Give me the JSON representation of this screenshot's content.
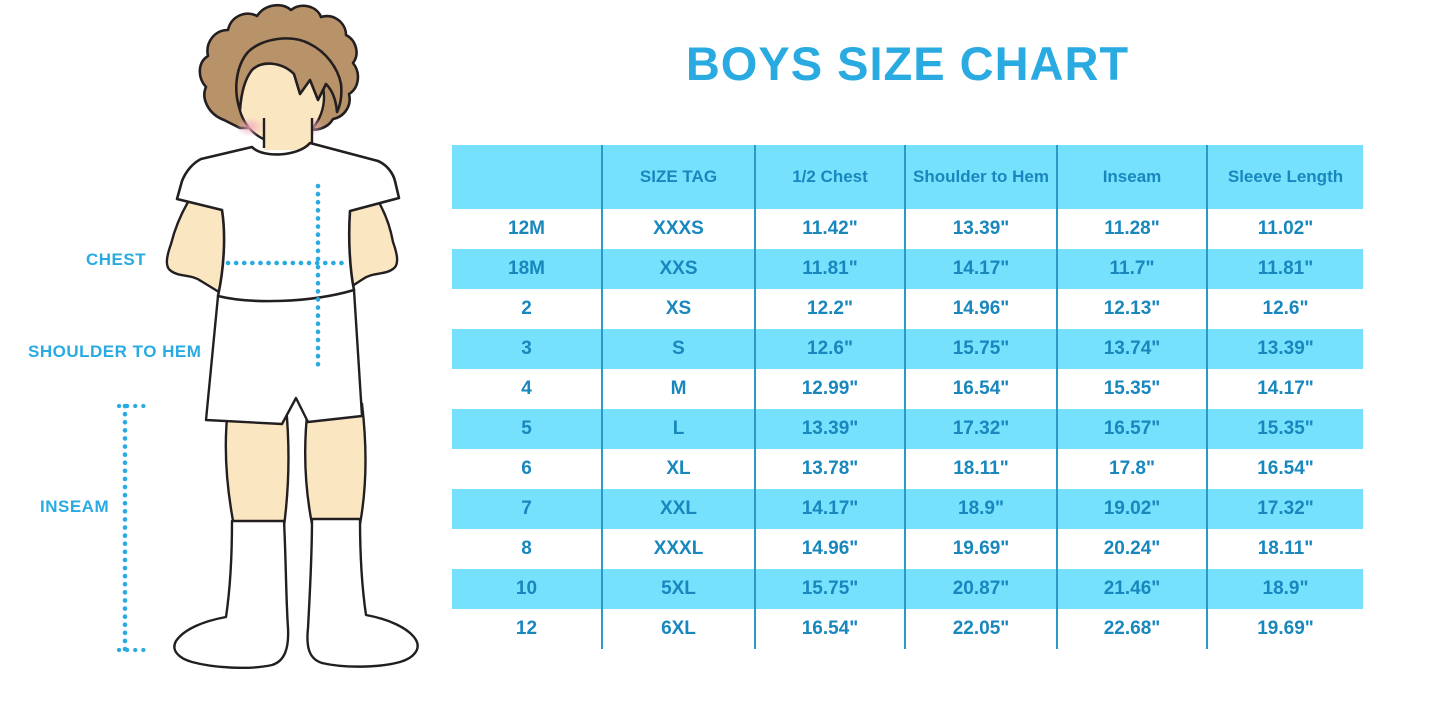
{
  "title": "BOYS SIZE CHART",
  "figure": {
    "labels": {
      "chest": "CHEST",
      "shoulder_to_hem": "SHOULDER TO HEM",
      "inseam": "INSEAM"
    },
    "icons": [
      "boy-illustration",
      "chest-dotted-line",
      "shoulder-to-hem-dotted-line",
      "inseam-dotted-line"
    ]
  },
  "colors": {
    "accent_blue": "#29ABE2",
    "table_fill_blue": "#76E1FC",
    "table_text_blue": "#1787BE",
    "table_border_blue": "#2B9AC6",
    "skin": "#FBE6C2",
    "hair": "#B8936A",
    "outline": "#231F20",
    "background": "#FFFFFF"
  },
  "chart_data": {
    "type": "table",
    "title": "BOYS SIZE CHART",
    "columns": [
      "",
      "SIZE TAG",
      "1/2 Chest",
      "Shoulder to Hem",
      "Inseam",
      "Sleeve Length"
    ],
    "rows": [
      [
        "12M",
        "XXXS",
        "11.42\"",
        "13.39\"",
        "11.28\"",
        "11.02\""
      ],
      [
        "18M",
        "XXS",
        "11.81\"",
        "14.17\"",
        "11.7\"",
        "11.81\""
      ],
      [
        "2",
        "XS",
        "12.2\"",
        "14.96\"",
        "12.13\"",
        "12.6\""
      ],
      [
        "3",
        "S",
        "12.6\"",
        "15.75\"",
        "13.74\"",
        "13.39\""
      ],
      [
        "4",
        "M",
        "12.99\"",
        "16.54\"",
        "15.35\"",
        "14.17\""
      ],
      [
        "5",
        "L",
        "13.39\"",
        "17.32\"",
        "16.57\"",
        "15.35\""
      ],
      [
        "6",
        "XL",
        "13.78\"",
        "18.11\"",
        "17.8\"",
        "16.54\""
      ],
      [
        "7",
        "XXL",
        "14.17\"",
        "18.9\"",
        "19.02\"",
        "17.32\""
      ],
      [
        "8",
        "XXXL",
        "14.96\"",
        "19.69\"",
        "20.24\"",
        "18.11\""
      ],
      [
        "10",
        "5XL",
        "15.75\"",
        "20.87\"",
        "21.46\"",
        "18.9\""
      ],
      [
        "12",
        "6XL",
        "16.54\"",
        "22.05\"",
        "22.68\"",
        "19.69\""
      ]
    ],
    "row_stripes": "white/light-blue alternating, header light-blue",
    "grid": "vertical column separators only"
  }
}
